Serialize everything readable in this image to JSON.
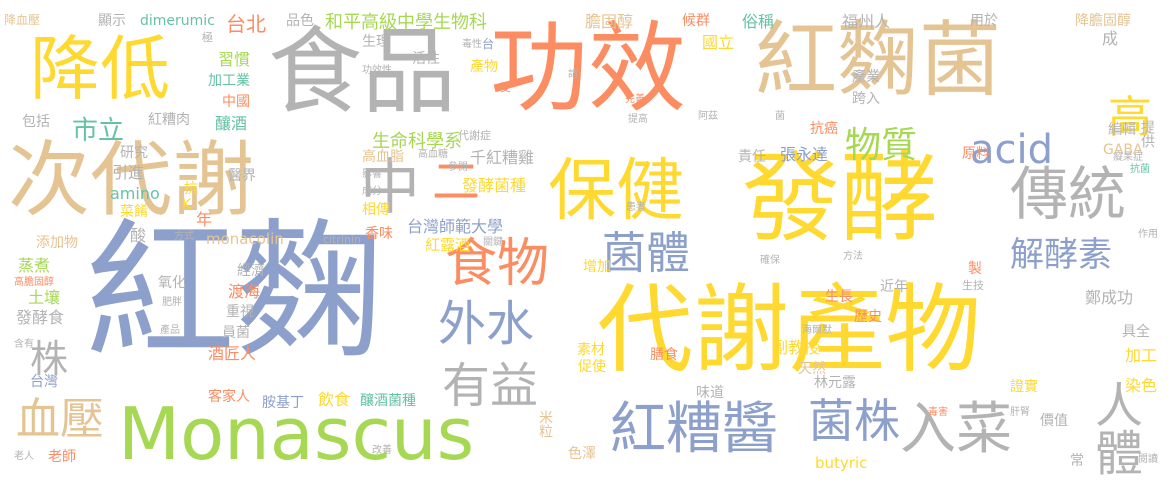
{
  "words": [
    {
      "text": "紅麴",
      "color": "#8da0cb"
    },
    {
      "text": "發酵",
      "color": "#ffd92f"
    },
    {
      "text": "功效",
      "color": "#fc8d62"
    },
    {
      "text": "代謝產物",
      "color": "#ffd92f"
    },
    {
      "text": "食品",
      "color": "#b3b3b3"
    },
    {
      "text": "紅麴菌",
      "color": "#e5c494"
    },
    {
      "text": "次代謝",
      "color": "#e5c494"
    },
    {
      "text": "Monascus",
      "color": "#a6d854"
    },
    {
      "text": "降低",
      "color": "#ffd92f"
    },
    {
      "text": "保健",
      "color": "#ffd92f"
    },
    {
      "text": "傳統",
      "color": "#b3b3b3"
    },
    {
      "text": "紅糟醬",
      "color": "#8da0cb"
    },
    {
      "text": "入菜",
      "color": "#b3b3b3"
    },
    {
      "text": "人體",
      "color": "#b3b3b3"
    },
    {
      "text": "中",
      "color": "#b3b3b3"
    },
    {
      "text": "外水",
      "color": "#8da0cb"
    },
    {
      "text": "食物",
      "color": "#fc8d62"
    },
    {
      "text": "菌株",
      "color": "#8da0cb"
    },
    {
      "text": "有益",
      "color": "#b3b3b3"
    },
    {
      "text": "菌體",
      "color": "#8da0cb"
    },
    {
      "text": "acid",
      "color": "#8da0cb"
    },
    {
      "text": "解酵素",
      "color": "#8da0cb"
    },
    {
      "text": "物質",
      "color": "#a6d854"
    },
    {
      "text": "血壓",
      "color": "#e5c494"
    },
    {
      "text": "高",
      "color": "#ffd92f"
    },
    {
      "text": "二",
      "color": "#fc8d62"
    },
    {
      "text": "株",
      "color": "#b3b3b3"
    },
    {
      "text": "市立",
      "color": "#66c2a5"
    },
    {
      "text": "台北",
      "color": "#fc8d62"
    },
    {
      "text": "和平高級中學生物科",
      "color": "#a6d854"
    },
    {
      "text": "生命科學系",
      "color": "#a6d854"
    },
    {
      "text": "台灣師範大學",
      "color": "#8da0cb"
    },
    {
      "text": "千紅糟雞",
      "color": "#b3b3b3"
    },
    {
      "text": "發酵菌種",
      "color": "#ffd92f"
    },
    {
      "text": "紅露酒",
      "color": "#ffd92f"
    },
    {
      "text": "monacolin",
      "color": "#e5c494"
    },
    {
      "text": "citrinin",
      "color": "#b3b3b3"
    },
    {
      "text": "butyric",
      "color": "#ffd92f"
    },
    {
      "text": "amino",
      "color": "#66c2a5"
    },
    {
      "text": "GABA",
      "color": "#e5c494"
    },
    {
      "text": "dimerumic",
      "color": "#66c2a5"
    },
    {
      "text": "張永達",
      "color": "#8da0cb"
    },
    {
      "text": "林元露",
      "color": "#b3b3b3"
    },
    {
      "text": "鄭成功",
      "color": "#b3b3b3"
    },
    {
      "text": "客家人",
      "color": "#fc8d62"
    },
    {
      "text": "老師",
      "color": "#fc8d62"
    },
    {
      "text": "胺基丁",
      "color": "#8da0cb"
    },
    {
      "text": "飲食",
      "color": "#ffd92f"
    },
    {
      "text": "釀酒菌種",
      "color": "#66c2a5"
    },
    {
      "text": "米粒",
      "color": "#e5c494"
    },
    {
      "text": "色澤",
      "color": "#e5c494"
    },
    {
      "text": "味道",
      "color": "#b3b3b3"
    },
    {
      "text": "證實",
      "color": "#ffd92f"
    },
    {
      "text": "價值",
      "color": "#b3b3b3"
    },
    {
      "text": "常",
      "color": "#b3b3b3"
    },
    {
      "text": "染色",
      "color": "#ffd92f"
    },
    {
      "text": "加工",
      "color": "#ffd92f"
    },
    {
      "text": "具全",
      "color": "#b3b3b3"
    },
    {
      "text": "台灣",
      "color": "#8da0cb"
    },
    {
      "text": "酒匠人",
      "color": "#fc8d62"
    },
    {
      "text": "員菌",
      "color": "#b3b3b3"
    },
    {
      "text": "重視",
      "color": "#b3b3b3"
    },
    {
      "text": "渡海",
      "color": "#fc8d62"
    },
    {
      "text": "經濟",
      "color": "#b3b3b3"
    },
    {
      "text": "發酵食",
      "color": "#b3b3b3"
    },
    {
      "text": "土壤",
      "color": "#a6d854"
    },
    {
      "text": "蒸煮",
      "color": "#a6d854"
    },
    {
      "text": "添加物",
      "color": "#e5c494"
    },
    {
      "text": "菜餚",
      "color": "#ffd92f"
    },
    {
      "text": "引進",
      "color": "#b3b3b3"
    },
    {
      "text": "研究",
      "color": "#b3b3b3"
    },
    {
      "text": "包括",
      "color": "#b3b3b3"
    },
    {
      "text": "紅糟肉",
      "color": "#b3b3b3"
    },
    {
      "text": "釀酒",
      "color": "#66c2a5"
    },
    {
      "text": "中國",
      "color": "#fc8d62"
    },
    {
      "text": "加工業",
      "color": "#66c2a5"
    },
    {
      "text": "習慣",
      "color": "#a6d854"
    },
    {
      "text": "顯示",
      "color": "#b3b3b3"
    },
    {
      "text": "品色",
      "color": "#b3b3b3"
    },
    {
      "text": "生理",
      "color": "#b3b3b3"
    },
    {
      "text": "活性",
      "color": "#b3b3b3"
    },
    {
      "text": "產物",
      "color": "#ffd92f"
    },
    {
      "text": "國立",
      "color": "#ffd92f"
    },
    {
      "text": "俗稱",
      "color": "#66c2a5"
    },
    {
      "text": "福州人",
      "color": "#b3b3b3"
    },
    {
      "text": "用於",
      "color": "#b3b3b3"
    },
    {
      "text": "降膽固醇",
      "color": "#e5c494"
    },
    {
      "text": "膽固醇",
      "color": "#e5c494"
    },
    {
      "text": "候群",
      "color": "#fc8d62"
    },
    {
      "text": "成",
      "color": "#b3b3b3"
    },
    {
      "text": "產業",
      "color": "#b3b3b3"
    },
    {
      "text": "跨入",
      "color": "#b3b3b3"
    },
    {
      "text": "抗癌",
      "color": "#fc8d62"
    },
    {
      "text": "編輯",
      "color": "#b3b3b3"
    },
    {
      "text": "提供",
      "color": "#b3b3b3"
    },
    {
      "text": "責任",
      "color": "#b3b3b3"
    },
    {
      "text": "原料",
      "color": "#fc8d62"
    },
    {
      "text": "醫界",
      "color": "#b3b3b3"
    },
    {
      "text": "香味",
      "color": "#fc8d62"
    },
    {
      "text": "相傳",
      "color": "#ffd92f"
    },
    {
      "text": "酸",
      "color": "#b3b3b3"
    },
    {
      "text": "年",
      "color": "#fc8d62"
    },
    {
      "text": "高血脂",
      "color": "#e5c494"
    },
    {
      "text": "氧化",
      "color": "#b3b3b3"
    },
    {
      "text": "生長",
      "color": "#fc8d62"
    },
    {
      "text": "歷史",
      "color": "#fc8d62"
    },
    {
      "text": "副教授",
      "color": "#ffd92f"
    },
    {
      "text": "近年",
      "color": "#b3b3b3"
    },
    {
      "text": "天然",
      "color": "#e5c494"
    },
    {
      "text": "增加",
      "color": "#ffd92f"
    },
    {
      "text": "素材",
      "color": "#ffd92f"
    },
    {
      "text": "促使",
      "color": "#ffd92f"
    },
    {
      "text": "膳食",
      "color": "#fc8d62"
    },
    {
      "text": "降血壓",
      "color": "#e5c494"
    },
    {
      "text": "抗",
      "color": "#ffd92f"
    },
    {
      "text": "K",
      "color": "#ffd92f"
    },
    {
      "text": "製",
      "color": "#fc8d62"
    },
    {
      "text": "台",
      "color": "#8da0cb"
    },
    {
      "text": "代謝症",
      "color": "#b3b3b3"
    },
    {
      "text": "生技",
      "color": "#b3b3b3"
    },
    {
      "text": "方法",
      "color": "#b3b3b3"
    },
    {
      "text": "毒性",
      "color": "#b3b3b3"
    },
    {
      "text": "功效性",
      "color": "#b3b3b3"
    },
    {
      "text": "極",
      "color": "#b3b3b3"
    },
    {
      "text": "受",
      "color": "#fc8d62"
    },
    {
      "text": "請",
      "color": "#b3b3b3"
    },
    {
      "text": "完善",
      "color": "#fc8d62"
    },
    {
      "text": "阿茲",
      "color": "#b3b3b3"
    },
    {
      "text": "提高",
      "color": "#b3b3b3"
    },
    {
      "text": "菌",
      "color": "#b3b3b3"
    },
    {
      "text": "癡呆症",
      "color": "#b3b3b3"
    },
    {
      "text": "抗菌",
      "color": "#66c2a5"
    },
    {
      "text": "影響",
      "color": "#b3b3b3"
    },
    {
      "text": "參閱",
      "color": "#b3b3b3"
    },
    {
      "text": "成分",
      "color": "#b3b3b3"
    },
    {
      "text": "高血糖",
      "color": "#b3b3b3"
    },
    {
      "text": "患者",
      "color": "#b3b3b3"
    },
    {
      "text": "方式",
      "color": "#b3b3b3"
    },
    {
      "text": "關鍵",
      "color": "#b3b3b3"
    },
    {
      "text": "確保",
      "color": "#b3b3b3"
    },
    {
      "text": "作用",
      "color": "#b3b3b3"
    },
    {
      "text": "高膽固醇",
      "color": "#fc8d62"
    },
    {
      "text": "肥胖",
      "color": "#b3b3b3"
    },
    {
      "text": "改善",
      "color": "#b3b3b3"
    },
    {
      "text": "產品",
      "color": "#b3b3b3"
    },
    {
      "text": "含有",
      "color": "#b3b3b3"
    },
    {
      "text": "海爾默",
      "color": "#b3b3b3"
    },
    {
      "text": "毒害",
      "color": "#fc8d62"
    },
    {
      "text": "肝腎",
      "color": "#b3b3b3"
    },
    {
      "text": "老人",
      "color": "#b3b3b3"
    },
    {
      "text": "閱讀",
      "color": "#b3b3b3"
    }
  ]
}
